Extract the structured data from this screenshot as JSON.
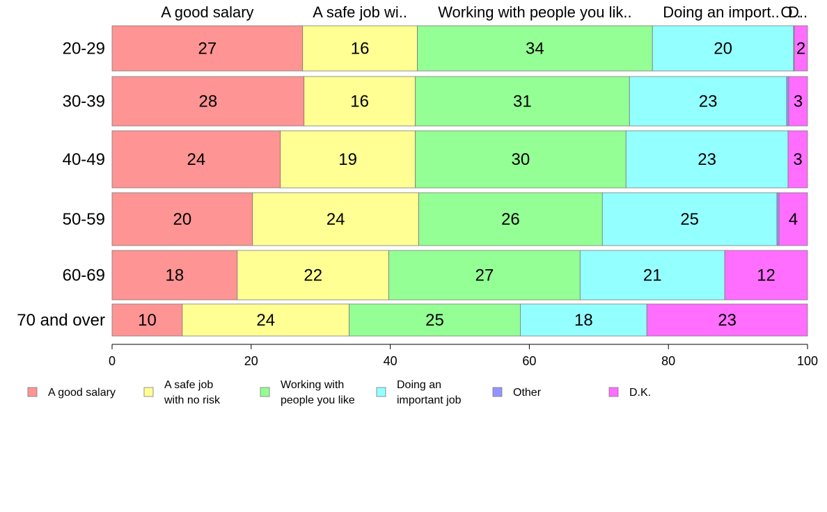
{
  "chart_data": {
    "type": "bar",
    "orientation": "horizontal",
    "stacked": true,
    "categories": [
      "20-29",
      "30-39",
      "40-49",
      "50-59",
      "60-69",
      "70 and over"
    ],
    "series": [
      {
        "name": "A good salary",
        "top_label": "A good salary",
        "legend": [
          "A good salary"
        ],
        "color": "#FF9494",
        "values": [
          27.4,
          27.6,
          24.2,
          20.2,
          18.0,
          10.1
        ],
        "labels": [
          "27",
          "28",
          "24",
          "20",
          "18",
          "10"
        ]
      },
      {
        "name": "A safe job with no risk",
        "top_label": "A safe job wi..",
        "legend": [
          "A safe job",
          "with no risk"
        ],
        "color": "#FFFF94",
        "values": [
          16.5,
          16.0,
          19.4,
          23.9,
          21.8,
          24.0
        ],
        "labels": [
          "16",
          "16",
          "19",
          "24",
          "22",
          "24"
        ]
      },
      {
        "name": "Working with people you like",
        "top_label": "Working with people you lik..",
        "legend": [
          "Working with",
          "people you like"
        ],
        "color": "#94FF94",
        "values": [
          33.8,
          30.8,
          30.3,
          26.4,
          27.5,
          24.6
        ],
        "labels": [
          "34",
          "31",
          "30",
          "26",
          "27",
          "25"
        ]
      },
      {
        "name": "Doing an important job",
        "top_label": "Doing an import..",
        "legend": [
          "Doing an",
          "important job"
        ],
        "color": "#94FFFF",
        "values": [
          20.3,
          22.6,
          23.3,
          25.1,
          20.8,
          18.2
        ],
        "labels": [
          "20",
          "23",
          "23",
          "25",
          "21",
          "18"
        ]
      },
      {
        "name": "Other",
        "top_label": "O..",
        "legend": [
          "Other"
        ],
        "color": "#9494FF",
        "values": [
          0.1,
          0.3,
          0.0,
          0.3,
          0.0,
          0.0
        ],
        "labels": [
          "",
          "",
          "",
          "",
          "",
          ""
        ]
      },
      {
        "name": "D.K.",
        "top_label": "D..",
        "legend": [
          "D.K."
        ],
        "color": "#FF6EFF",
        "values": [
          1.9,
          2.7,
          2.8,
          4.1,
          11.9,
          23.1
        ],
        "labels": [
          "2",
          "3",
          "3",
          "4",
          "12",
          "23"
        ]
      }
    ],
    "xlim": [
      0,
      100
    ],
    "x_ticks": [
      0,
      20,
      40,
      60,
      80,
      100
    ],
    "grid": false,
    "legend_position": "bottom"
  }
}
